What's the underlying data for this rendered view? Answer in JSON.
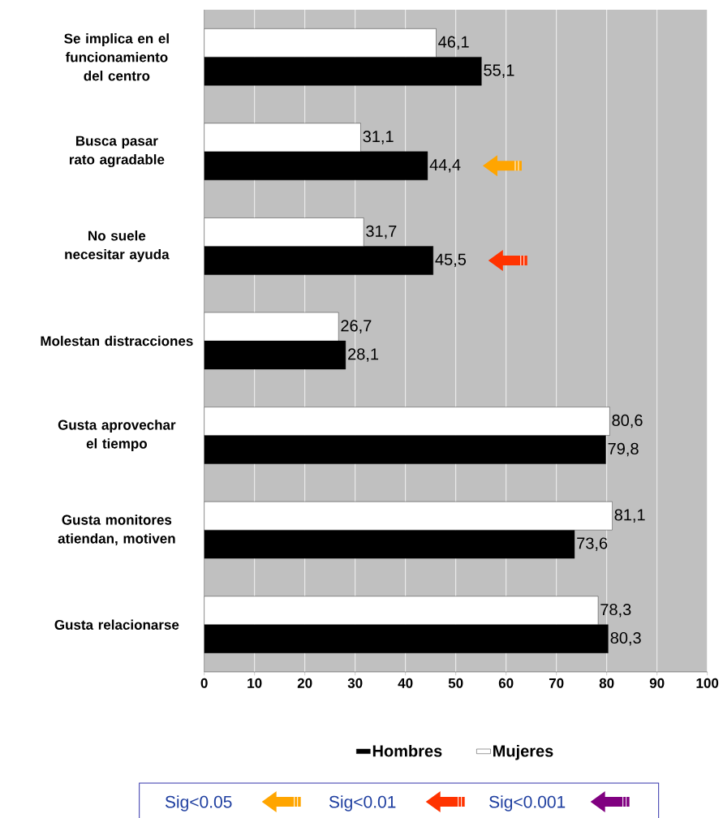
{
  "chart_data": {
    "type": "bar",
    "orientation": "horizontal",
    "categories": [
      "Se implica en el funcionamiento del centro",
      "Busca pasar rato agradable",
      "No suele necesitar ayuda",
      "Molestan distracciones",
      "Gusta aprovechar el tiempo",
      "Gusta monitores atiendan, motiven",
      "Gusta relacionarse"
    ],
    "series": [
      {
        "name": "Hombres",
        "color": "#000000",
        "values": [
          55.1,
          44.4,
          45.5,
          28.1,
          79.8,
          73.6,
          80.3
        ],
        "value_labels": [
          "55,1",
          "44,4",
          "45,5",
          "28,1",
          "79,8",
          "73,6",
          "80,3"
        ]
      },
      {
        "name": "Mujeres",
        "color": "#ffffff",
        "values": [
          46.1,
          31.1,
          31.7,
          26.7,
          80.6,
          81.1,
          78.3
        ],
        "value_labels": [
          "46,1",
          "31,1",
          "31,7",
          "26,7",
          "80,6",
          "81,1",
          "78,3"
        ]
      }
    ],
    "xlim": [
      0,
      100
    ],
    "xticks": [
      0,
      10,
      20,
      30,
      40,
      50,
      60,
      70,
      80,
      90,
      100
    ],
    "grid": "x",
    "legend": "bottom",
    "annotations": [
      "Sig<0.05",
      "Sig<0.01",
      "Sig<0.001"
    ]
  }
}
